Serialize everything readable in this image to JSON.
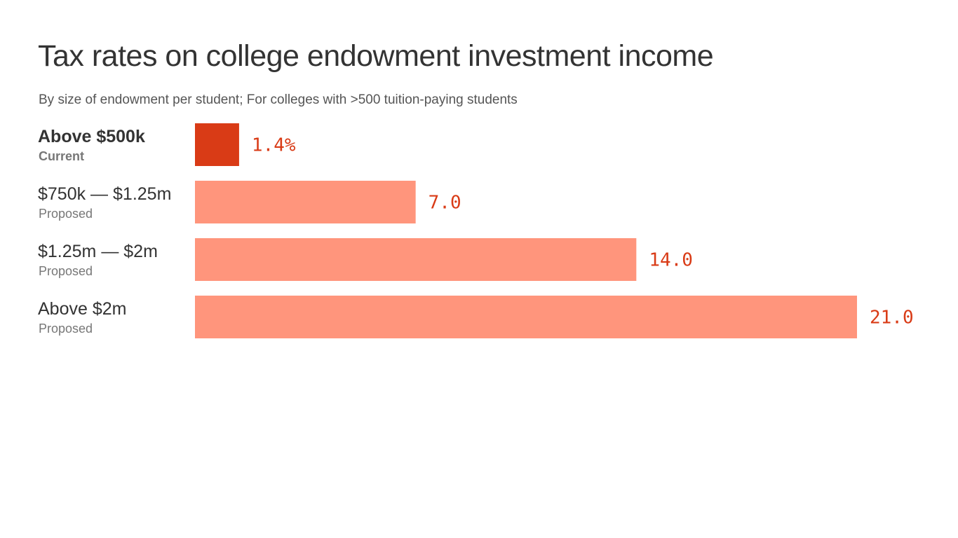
{
  "chart_data": {
    "type": "bar",
    "orientation": "horizontal",
    "title": "Tax rates on college endowment investment income",
    "subtitle": "By size of endowment per student; For colleges with >500 tuition-paying students",
    "categories": [
      "Above $500k",
      "$750k — $1.25m",
      "$1.25m — $2m",
      "Above $2m"
    ],
    "sublabels": [
      "Current",
      "Proposed",
      "Proposed",
      "Proposed"
    ],
    "values": [
      1.4,
      7.0,
      14.0,
      21.0
    ],
    "value_labels": [
      "1.4%",
      "7.0",
      "14.0",
      "21.0"
    ],
    "xlim": [
      0,
      21
    ],
    "grid": false,
    "colors": {
      "current_bar": "#d93b16",
      "proposed_bar": "#ff957c",
      "value_text": "#d93b16"
    }
  }
}
